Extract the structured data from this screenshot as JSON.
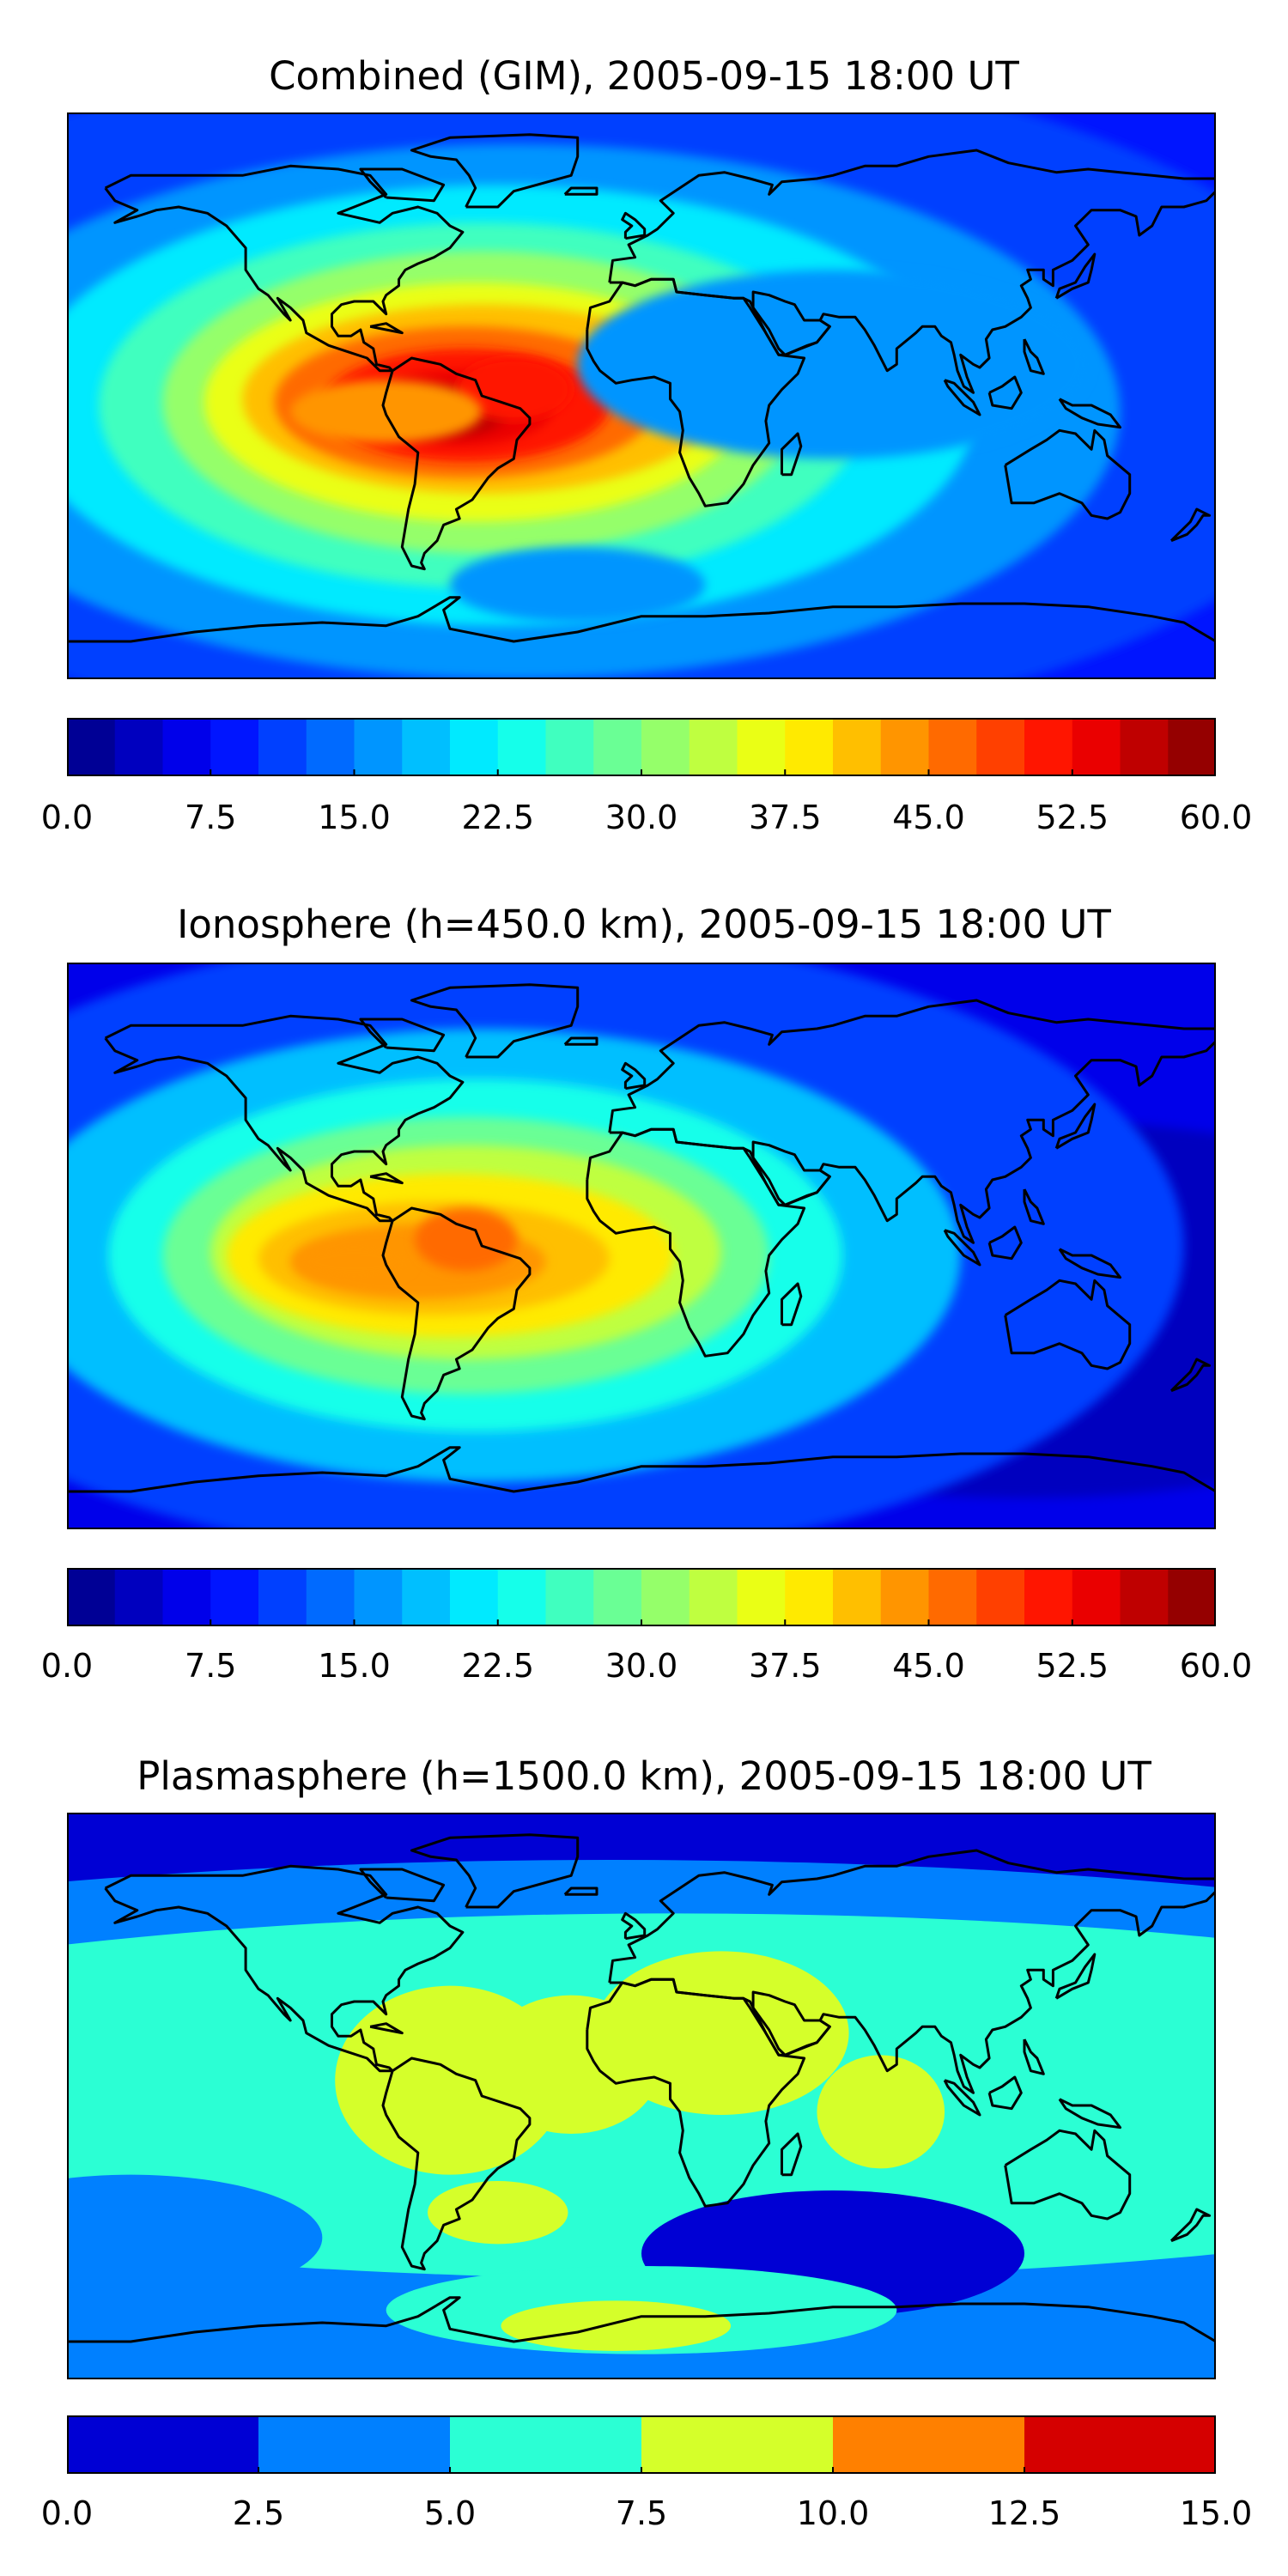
{
  "chart_data": [
    {
      "type": "heatmap",
      "title": "Combined (GIM), 2005-09-15 18:00 UT",
      "projection": "equirectangular world map with coastlines",
      "colormap": "jet",
      "levels": [
        0.0,
        2.5,
        5.0,
        7.5,
        10.0,
        12.5,
        15.0,
        17.5,
        20.0,
        22.5,
        25.0,
        27.5,
        30.0,
        32.5,
        35.0,
        37.5,
        40.0,
        42.5,
        45.0,
        47.5,
        50.0,
        52.5,
        55.0,
        57.5,
        60.0
      ],
      "tick_labels": [
        "0.0",
        "7.5",
        "15.0",
        "22.5",
        "30.0",
        "37.5",
        "45.0",
        "52.5",
        "60.0"
      ],
      "range": [
        0,
        60
      ],
      "features": [
        {
          "lon": -60,
          "lat": -5,
          "value": 56
        },
        {
          "lon": -35,
          "lat": 0,
          "value": 48
        },
        {
          "lon": -10,
          "lat": -2,
          "value": 40
        },
        {
          "lon": -100,
          "lat": -5,
          "value": 38
        }
      ]
    },
    {
      "type": "heatmap",
      "title": "Ionosphere  (h=450.0 km), 2005-09-15 18:00 UT",
      "projection": "equirectangular world map with coastlines",
      "colormap": "jet",
      "levels": [
        0.0,
        2.5,
        5.0,
        7.5,
        10.0,
        12.5,
        15.0,
        17.5,
        20.0,
        22.5,
        25.0,
        27.5,
        30.0,
        32.5,
        35.0,
        37.5,
        40.0,
        42.5,
        45.0,
        47.5,
        50.0,
        52.5,
        55.0,
        57.5,
        60.0
      ],
      "tick_labels": [
        "0.0",
        "7.5",
        "15.0",
        "22.5",
        "30.0",
        "37.5",
        "45.0",
        "52.5",
        "60.0"
      ],
      "range": [
        0,
        60
      ],
      "features": [
        {
          "lon": -55,
          "lat": 2,
          "value": 47
        },
        {
          "lon": -90,
          "lat": -5,
          "value": 44
        },
        {
          "lon": -10,
          "lat": 0,
          "value": 35
        },
        {
          "lon": 150,
          "lat": -20,
          "value": 3
        }
      ]
    },
    {
      "type": "heatmap",
      "title": "Plasmasphere (h=1500.0 km), 2005-09-15 18:00 UT",
      "projection": "equirectangular world map with coastlines",
      "colormap": "jet (discrete)",
      "levels": [
        0.0,
        2.5,
        5.0,
        7.5,
        10.0,
        12.5,
        15.0
      ],
      "tick_labels": [
        "0.0",
        "2.5",
        "5.0",
        "7.5",
        "10.0",
        "12.5",
        "15.0"
      ],
      "range": [
        0,
        15
      ],
      "features": [
        {
          "lon": -60,
          "lat": 0,
          "value": 8
        },
        {
          "lon": 25,
          "lat": 20,
          "value": 8
        },
        {
          "lon": -20,
          "lat": 10,
          "value": 8
        },
        {
          "lon": 75,
          "lat": -5,
          "value": 8
        },
        {
          "lon": -40,
          "lat": -35,
          "value": 8
        },
        {
          "lon": 30,
          "lat": -60,
          "value": 8
        }
      ]
    }
  ]
}
